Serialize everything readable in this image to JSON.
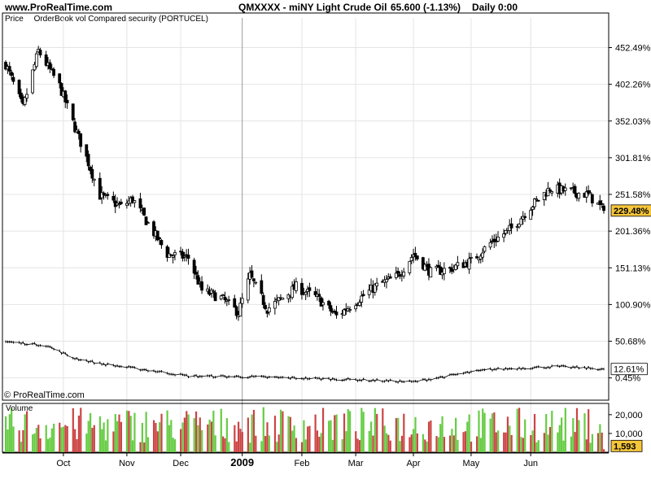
{
  "header": {
    "site": "www.ProRealTime.com",
    "instrument": "QMXXXX - miNY Light Crude Oil",
    "quote": "65.600 (-1.13%)",
    "period": "Daily  0:00"
  },
  "subheader": {
    "price_label": "Price",
    "indicator_label": "OrderBook vol Compared security (PORTUCEL)"
  },
  "watermark": "© ProRealTime.com",
  "colors": {
    "grid": "#e4e4e4",
    "axis": "#000000",
    "highlight": "#f5c53a",
    "volume_up": "#66cc44",
    "volume_down": "#cc4444"
  },
  "chart_data": [
    {
      "type": "candlestick",
      "pane": "price",
      "ylabel": "",
      "ylim": [
        -30,
        482
      ],
      "ytick_labels": [
        "452.49%",
        "402.26%",
        "352.03%",
        "301.81%",
        "251.58%",
        "201.36%",
        "151.13%",
        "100.90%",
        "50.68%",
        "0.45%"
      ],
      "yticks": [
        452.49,
        402.26,
        352.03,
        301.81,
        251.58,
        201.36,
        151.13,
        100.9,
        50.68,
        0.45
      ],
      "last_value_label": "229.48%",
      "last_value": 229.48,
      "anchors": [
        {
          "date": "2008-09-01",
          "value": 430
        },
        {
          "date": "2008-09-10",
          "value": 370
        },
        {
          "date": "2008-09-18",
          "value": 448
        },
        {
          "date": "2008-09-29",
          "value": 400
        },
        {
          "date": "2008-10-06",
          "value": 350
        },
        {
          "date": "2008-10-14",
          "value": 295
        },
        {
          "date": "2008-10-20",
          "value": 250
        },
        {
          "date": "2008-10-31",
          "value": 235
        },
        {
          "date": "2008-11-06",
          "value": 245
        },
        {
          "date": "2008-11-12",
          "value": 220
        },
        {
          "date": "2008-11-24",
          "value": 170
        },
        {
          "date": "2008-12-05",
          "value": 165
        },
        {
          "date": "2008-12-12",
          "value": 120
        },
        {
          "date": "2008-12-22",
          "value": 110
        },
        {
          "date": "2008-12-31",
          "value": 90
        },
        {
          "date": "2009-01-06",
          "value": 140
        },
        {
          "date": "2009-01-15",
          "value": 95
        },
        {
          "date": "2009-01-23",
          "value": 110
        },
        {
          "date": "2009-01-30",
          "value": 125
        },
        {
          "date": "2009-02-10",
          "value": 110
        },
        {
          "date": "2009-02-20",
          "value": 85
        },
        {
          "date": "2009-03-02",
          "value": 105
        },
        {
          "date": "2009-03-12",
          "value": 125
        },
        {
          "date": "2009-03-24",
          "value": 140
        },
        {
          "date": "2009-04-01",
          "value": 170
        },
        {
          "date": "2009-04-10",
          "value": 145
        },
        {
          "date": "2009-04-20",
          "value": 150
        },
        {
          "date": "2009-05-01",
          "value": 160
        },
        {
          "date": "2009-05-11",
          "value": 185
        },
        {
          "date": "2009-05-22",
          "value": 205
        },
        {
          "date": "2009-06-01",
          "value": 235
        },
        {
          "date": "2009-06-11",
          "value": 260
        },
        {
          "date": "2009-06-22",
          "value": 255
        },
        {
          "date": "2009-07-01",
          "value": 251
        },
        {
          "date": "2009-07-09",
          "value": 229.48
        }
      ]
    },
    {
      "type": "line",
      "pane": "comparison",
      "last_value_label": "12.61%",
      "last_value": 12.61,
      "anchors": [
        {
          "date": "2008-09-01",
          "value": 50
        },
        {
          "date": "2008-09-22",
          "value": 45
        },
        {
          "date": "2008-10-06",
          "value": 28
        },
        {
          "date": "2008-10-20",
          "value": 20
        },
        {
          "date": "2008-11-17",
          "value": 10
        },
        {
          "date": "2008-12-05",
          "value": 3
        },
        {
          "date": "2009-01-05",
          "value": 2
        },
        {
          "date": "2009-03-02",
          "value": -2
        },
        {
          "date": "2009-04-01",
          "value": -5
        },
        {
          "date": "2009-04-30",
          "value": 8
        },
        {
          "date": "2009-05-11",
          "value": 12
        },
        {
          "date": "2009-06-15",
          "value": 16
        },
        {
          "date": "2009-07-09",
          "value": 12.61
        }
      ]
    },
    {
      "type": "bar",
      "pane": "volume",
      "title": "Volume",
      "ylim": [
        0,
        26000
      ],
      "ytick_labels": [
        "20,000",
        "10,000"
      ],
      "yticks": [
        20000,
        10000
      ],
      "last_value_label": "1,593",
      "last_value": 1593,
      "typical_range": [
        5000,
        24000
      ]
    }
  ],
  "x_axis": {
    "labels": [
      {
        "text": "Oct",
        "date": "2008-10-01"
      },
      {
        "text": "Nov",
        "date": "2008-11-03"
      },
      {
        "text": "Dec",
        "date": "2008-12-01"
      },
      {
        "text": "2009",
        "date": "2009-01-02",
        "bold": true
      },
      {
        "text": "Feb",
        "date": "2009-02-02"
      },
      {
        "text": "Mar",
        "date": "2009-03-02"
      },
      {
        "text": "Apr",
        "date": "2009-04-01"
      },
      {
        "text": "May",
        "date": "2009-05-01"
      },
      {
        "text": "Jun",
        "date": "2009-06-01"
      }
    ],
    "start": "2008-09-01",
    "end": "2009-07-09"
  }
}
